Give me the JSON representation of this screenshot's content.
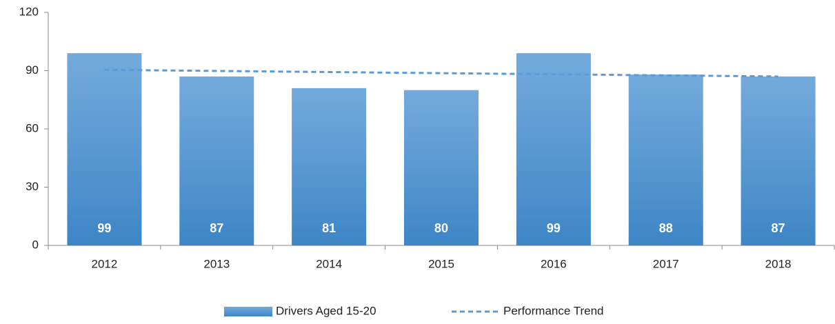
{
  "chart_data": {
    "type": "bar",
    "categories": [
      "2012",
      "2013",
      "2014",
      "2015",
      "2016",
      "2017",
      "2018"
    ],
    "series": [
      {
        "name": "Drivers Aged 15-20",
        "color": "#5b9bd5",
        "values": [
          99,
          87,
          81,
          80,
          99,
          88,
          87
        ]
      },
      {
        "name": "Performance Trend",
        "type": "line",
        "dashed": true,
        "color": "#5b9bd5",
        "values": [
          90.43,
          89.86,
          89.29,
          88.71,
          88.14,
          87.57,
          87.0
        ]
      }
    ],
    "ylim": [
      0,
      120
    ],
    "yticks": [
      0,
      30,
      60,
      90,
      120
    ],
    "grid": false,
    "legend": "bottom"
  }
}
